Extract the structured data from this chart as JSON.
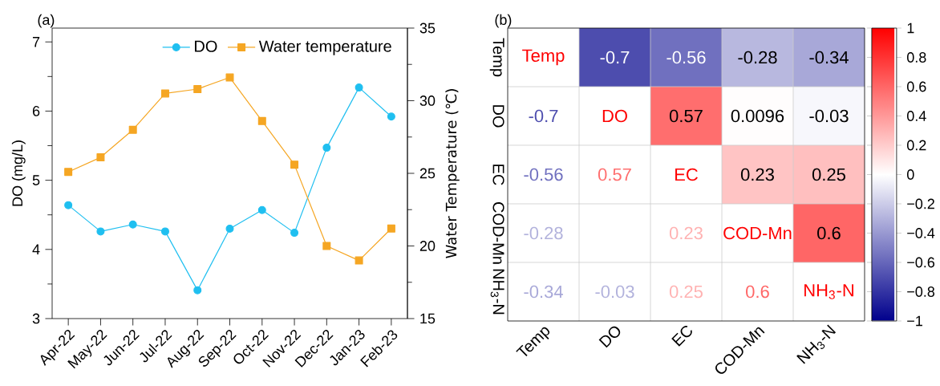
{
  "chart_data": [
    {
      "type": "line",
      "annotations": [
        "(a)"
      ],
      "ylabel": "DO (mg/L)",
      "y2label": "Water Temperature (℃)",
      "categories": [
        "Apr-22",
        "May-22",
        "Jun-22",
        "Jul-22",
        "Aug-22",
        "Sep-22",
        "Oct-22",
        "Nov-22",
        "Dec-22",
        "Jan-23",
        "Feb-23"
      ],
      "series": [
        {
          "name": "DO",
          "color": "#1fbff0",
          "marker": "circle",
          "values": [
            4.64,
            4.26,
            4.36,
            4.26,
            3.41,
            4.3,
            4.57,
            4.24,
            5.47,
            6.34,
            5.92
          ]
        },
        {
          "name": "Water temperature",
          "color": "#f5a623",
          "marker": "square",
          "axis": "y2",
          "values": [
            25.1,
            26.1,
            28.0,
            30.5,
            30.8,
            31.6,
            28.6,
            25.6,
            20.0,
            19.0,
            21.2
          ]
        }
      ],
      "ylim": [
        3,
        7.2
      ],
      "yticks": [
        3,
        4,
        5,
        6,
        7
      ],
      "y2lim": [
        15,
        35
      ],
      "y2ticks": [
        15,
        20,
        25,
        30,
        35
      ],
      "legend": "top right",
      "grid": false
    },
    {
      "type": "heatmap",
      "annotations": [
        "(b)"
      ],
      "categories": [
        "Temp",
        "DO",
        "EC",
        "COD-Mn",
        "NH$_{3}$-N"
      ],
      "y_categories": [
        "Temp",
        "DO",
        "EC",
        "COD-Mn",
        "NH$_{3}$-N"
      ],
      "cells": [
        [
          null,
          -0.7,
          -0.56,
          -0.28,
          -0.34
        ],
        [
          null,
          null,
          0.57,
          0.0096,
          -0.03
        ],
        [
          null,
          null,
          null,
          0.23,
          0.25
        ],
        [
          null,
          null,
          null,
          null,
          0.6
        ],
        [
          null,
          null,
          null,
          null,
          null
        ]
      ],
      "cell_labels": [
        [
          "Temp",
          "-0.7",
          "-0.56",
          "-0.28",
          "-0.34"
        ],
        [
          "-0.7",
          "DO",
          "0.57",
          "0.0096",
          "-0.03"
        ],
        [
          "-0.56",
          "0.57",
          "EC",
          "0.23",
          "0.25"
        ],
        [
          "-0.28",
          null,
          "0.23",
          "COD-Mn",
          "0.6"
        ],
        [
          "-0.34",
          "-0.03",
          "0.25",
          "0.6",
          "NH$_{3}$-N"
        ]
      ],
      "clim": [
        -1,
        1
      ],
      "cticks": [
        {
          "value": -1,
          "label": "−1"
        },
        {
          "value": -0.8,
          "label": "−0.8"
        },
        {
          "value": -0.6,
          "label": "−0.6"
        },
        {
          "value": -0.4,
          "label": "−0.4"
        },
        {
          "value": -0.2,
          "label": "−0.2"
        },
        0,
        0.2,
        0.4,
        0.6,
        0.8,
        1
      ]
    }
  ]
}
